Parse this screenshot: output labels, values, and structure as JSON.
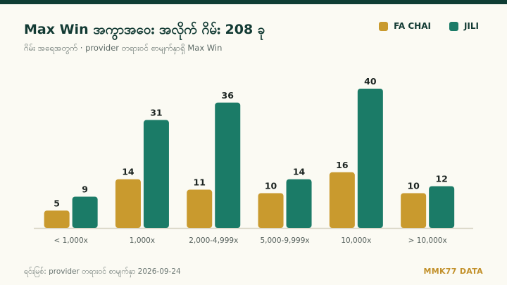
{
  "header": {
    "title": "Max Win အကွာအဝေး အလိုက် ဂိမ်း 208 ခု",
    "subtitle": "ဂိမ်း အရေအတွက် · provider တရားဝင် စာမျက်နှာရှိ Max Win"
  },
  "footer": {
    "source": "ရင်းမြစ်: provider တရားဝင် စာမျက်နှာ 2026-09-24",
    "brand": "MMK77 DATA"
  },
  "colors": {
    "fa_chai": "#c99a2e",
    "jili": "#1b7b67",
    "axis": "#d8d4c4",
    "value_label": "#1c2421",
    "tick_label": "#55605c"
  },
  "chart_data": {
    "type": "bar",
    "categories": [
      "< 1,000x",
      "1,000x",
      "2,000-4,999x",
      "5,000-9,999x",
      "10,000x",
      "> 10,000x"
    ],
    "series": [
      {
        "name": "FA CHAI",
        "values": [
          5,
          14,
          11,
          10,
          16,
          10
        ]
      },
      {
        "name": "JILI",
        "values": [
          9,
          31,
          36,
          14,
          40,
          12
        ]
      }
    ],
    "title": "Max Win အကွာအဝေး အလိုက် ဂိမ်း 208 ခု",
    "xlabel": "",
    "ylabel": "",
    "ylim": [
      0,
      40
    ],
    "grid": false,
    "legend": "top-right"
  }
}
